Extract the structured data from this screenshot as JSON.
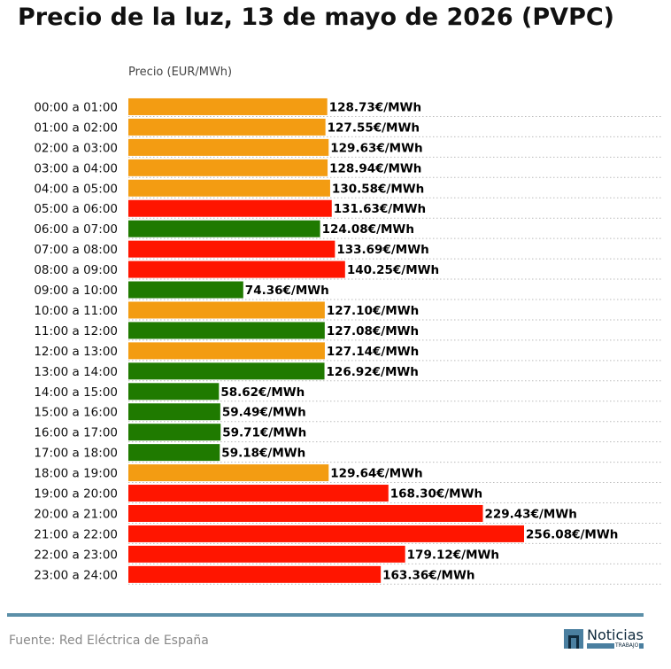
{
  "title": "Precio de la luz, 13 de mayo de 2026 (PVPC)",
  "source": "Fuente: Red Eléctrica de España",
  "logo": {
    "text": "Noticias",
    "sub": "TRABAJO"
  },
  "colors": {
    "orange": "#f39c12",
    "red": "#ff1500",
    "green": "#1f7a00",
    "rule": "#5b8fa8"
  },
  "chart_data": {
    "type": "bar",
    "orientation": "horizontal",
    "ylabel": "Precio (EUR/MWh)",
    "value_suffix": "€/MWh",
    "grid": "dotted horizontal",
    "categories": [
      "00:00 a 01:00",
      "01:00 a 02:00",
      "02:00 a 03:00",
      "03:00 a 04:00",
      "04:00 a 05:00",
      "05:00 a 06:00",
      "06:00 a 07:00",
      "07:00 a 08:00",
      "08:00 a 09:00",
      "09:00 a 10:00",
      "10:00 a 11:00",
      "11:00 a 12:00",
      "12:00 a 13:00",
      "13:00 a 14:00",
      "14:00 a 15:00",
      "15:00 a 16:00",
      "16:00 a 17:00",
      "17:00 a 18:00",
      "18:00 a 19:00",
      "19:00 a 20:00",
      "20:00 a 21:00",
      "21:00 a 22:00",
      "22:00 a 23:00",
      "23:00 a 24:00"
    ],
    "values": [
      128.73,
      127.55,
      129.63,
      128.94,
      130.58,
      131.63,
      124.08,
      133.69,
      140.25,
      74.36,
      127.1,
      127.08,
      127.14,
      126.92,
      58.62,
      59.49,
      59.71,
      59.18,
      129.64,
      168.3,
      229.43,
      256.08,
      179.12,
      163.36
    ],
    "labels": [
      "128.73€/MWh",
      "127.55€/MWh",
      "129.63€/MWh",
      "128.94€/MWh",
      "130.58€/MWh",
      "131.63€/MWh",
      "124.08€/MWh",
      "133.69€/MWh",
      "140.25€/MWh",
      "74.36€/MWh",
      "127.10€/MWh",
      "127.08€/MWh",
      "127.14€/MWh",
      "126.92€/MWh",
      "58.62€/MWh",
      "59.49€/MWh",
      "59.71€/MWh",
      "59.18€/MWh",
      "129.64€/MWh",
      "168.30€/MWh",
      "229.43€/MWh",
      "256.08€/MWh",
      "179.12€/MWh",
      "163.36€/MWh"
    ],
    "bar_colors": [
      "orange",
      "orange",
      "orange",
      "orange",
      "orange",
      "red",
      "green",
      "red",
      "red",
      "green",
      "orange",
      "green",
      "orange",
      "green",
      "green",
      "green",
      "green",
      "green",
      "orange",
      "red",
      "red",
      "red",
      "red",
      "red"
    ]
  }
}
